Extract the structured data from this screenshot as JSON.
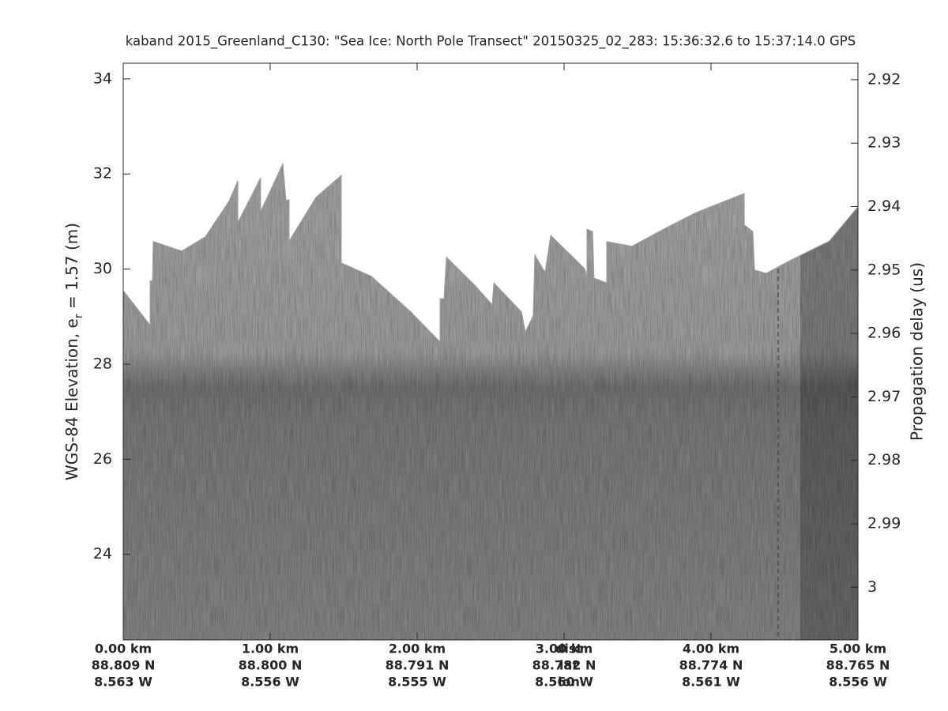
{
  "chart_data": {
    "type": "echogram",
    "title": "kaband 2015_Greenland_C130: \"Sea Ice: North Pole Transect\"  20150325_02_283: 15:36:32.6 to 15:37:14.0 GPS",
    "ylabel": "WGS-84 Elevation, e",
    "ylabel_sub": "r",
    "ylabel_tail": " = 1.57 (m)",
    "y2label": "Propagation delay (us)",
    "xlim": [
      0,
      5
    ],
    "xticks": [
      {
        "value": 0,
        "label": "0.00 km"
      },
      {
        "value": 1,
        "label": "1.00 km"
      },
      {
        "value": 2,
        "label": "2.00 km"
      },
      {
        "value": 3,
        "label": "3.00 km"
      },
      {
        "value": 4,
        "label": "4.00 km"
      },
      {
        "value": 5,
        "label": "5.00 km"
      }
    ],
    "lat_labels": [
      "88.809 N",
      "88.800 N",
      "88.791 N",
      "88.782 N",
      "88.774 N",
      "88.765 N"
    ],
    "lon_labels": [
      "8.563 W",
      "8.556 W",
      "8.555 W",
      "8.560 W",
      "8.561 W",
      "8.556 W"
    ],
    "row_labels": [
      "dist",
      "lat",
      "lon"
    ],
    "row_label_x": 2.5,
    "ylim": [
      22.2,
      34.33
    ],
    "yticks": [
      24,
      26,
      28,
      30,
      32,
      34
    ],
    "y2lim": [
      3.0083,
      2.9174
    ],
    "y2ticks": [
      2.92,
      2.93,
      2.94,
      2.95,
      2.96,
      2.97,
      2.98,
      2.99,
      3
    ],
    "surface_x": [
      0,
      0.183,
      0.183,
      0.199,
      0.204,
      0.398,
      0.559,
      0.72,
      0.78,
      0.78,
      0.935,
      0.935,
      1.086,
      1.108,
      1.129,
      1.129,
      1.312,
      1.484,
      1.484,
      1.688,
      1.957,
      2.156,
      2.156,
      2.183,
      2.199,
      2.387,
      2.511,
      2.522,
      2.71,
      2.737,
      2.79,
      2.801,
      2.871,
      2.909,
      3.14,
      3.156,
      3.156,
      3.194,
      3.204,
      3.29,
      3.29,
      3.462,
      3.677,
      3.892,
      4.226,
      4.226,
      4.285,
      4.296,
      4.376,
      4.538,
      4.806,
      5
    ],
    "surface_elevation": [
      29.55,
      28.82,
      29.75,
      29.76,
      30.58,
      30.38,
      30.68,
      31.43,
      31.86,
      30.98,
      31.92,
      31.21,
      32.22,
      31.44,
      31.46,
      30.59,
      31.51,
      31.97,
      30.13,
      29.85,
      29.1,
      28.47,
      29.38,
      29.37,
      30.25,
      29.68,
      29.25,
      29.71,
      29.1,
      28.68,
      29.02,
      30.3,
      29.93,
      30.71,
      30.01,
      29.85,
      30.84,
      30.79,
      29.81,
      29.71,
      30.58,
      30.48,
      30.84,
      31.18,
      31.59,
      30.93,
      30.79,
      29.98,
      29.91,
      30.18,
      30.59,
      31.31
    ]
  }
}
